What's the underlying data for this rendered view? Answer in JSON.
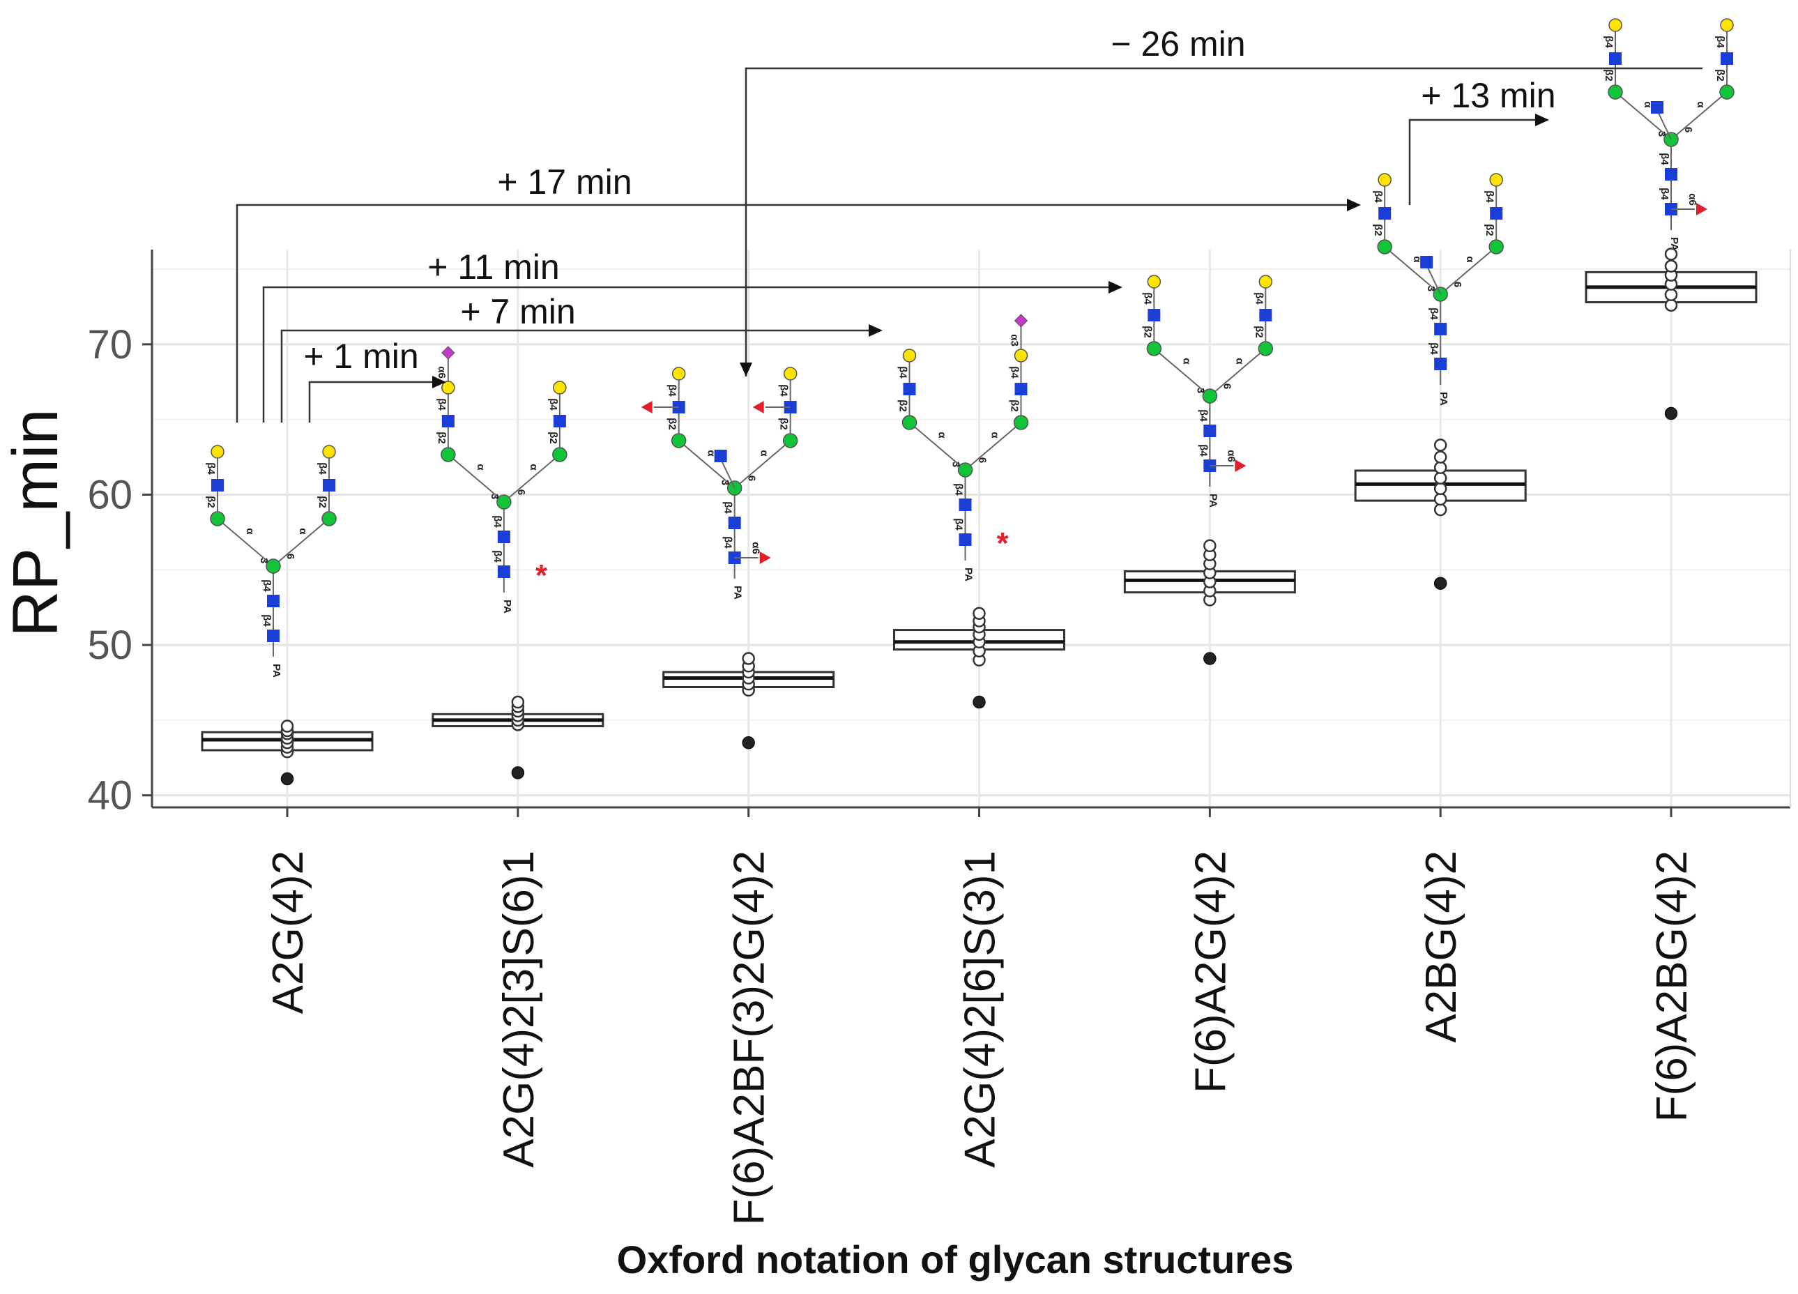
{
  "chart_data": {
    "type": "boxplot",
    "ylabel": "RP_min",
    "xlabel": "Oxford notation of glycan structures",
    "ylim": [
      39.2,
      76.3
    ],
    "yticks": [
      40,
      50,
      60,
      70
    ],
    "grid": true,
    "categories": [
      "A2G(4)2",
      "A2G(4)2[3]S(6)1",
      "F(6)A2BF(3)2G(4)2",
      "A2G(4)2[6]S(3)1",
      "F(6)A2G(4)2",
      "A2BG(4)2",
      "F(6)A2BG(4)2"
    ],
    "boxes": [
      {
        "q1": 43.0,
        "median": 43.7,
        "q3": 44.2,
        "low": 43.0,
        "high": 44.6,
        "points": [
          42.9,
          43.2,
          43.5,
          43.8,
          44.1,
          44.3,
          44.6
        ],
        "filled": [
          41.1
        ]
      },
      {
        "q1": 44.6,
        "median": 45.0,
        "q3": 45.4,
        "low": 44.6,
        "high": 46.2,
        "points": [
          44.7,
          45.0,
          45.3,
          45.6,
          45.9,
          46.2
        ],
        "filled": [
          41.5
        ]
      },
      {
        "q1": 47.2,
        "median": 47.8,
        "q3": 48.2,
        "low": 47.0,
        "high": 49.1,
        "points": [
          47.0,
          47.4,
          47.8,
          48.2,
          48.6,
          49.1
        ],
        "filled": [
          43.5
        ]
      },
      {
        "q1": 49.7,
        "median": 50.2,
        "q3": 51.0,
        "low": 49.0,
        "high": 52.1,
        "points": [
          49.0,
          49.6,
          50.2,
          50.7,
          51.2,
          51.6,
          52.1
        ],
        "filled": [
          46.2
        ]
      },
      {
        "q1": 53.5,
        "median": 54.3,
        "q3": 54.9,
        "low": 53.0,
        "high": 56.6,
        "points": [
          53.0,
          53.6,
          54.2,
          54.8,
          55.4,
          56.0,
          56.6
        ],
        "filled": [
          49.1
        ]
      },
      {
        "q1": 59.6,
        "median": 60.7,
        "q3": 61.6,
        "low": 59.0,
        "high": 63.3,
        "points": [
          59.0,
          59.7,
          60.4,
          61.1,
          61.8,
          62.5,
          63.3
        ],
        "filled": [
          54.1
        ]
      },
      {
        "q1": 72.8,
        "median": 73.8,
        "q3": 74.8,
        "low": 72.6,
        "high": 76.0,
        "points": [
          72.6,
          73.3,
          74.0,
          74.6,
          75.2,
          76.0
        ],
        "filled": [
          65.4
        ]
      }
    ],
    "annotations": [
      {
        "label": "+ 1 min",
        "from": 0,
        "to": 1
      },
      {
        "label": "+ 7 min",
        "from": 0,
        "to": 3
      },
      {
        "label": "+ 11 min",
        "from": 0,
        "to": 4
      },
      {
        "label": "+ 17 min",
        "from": 0,
        "to": 5
      },
      {
        "label": "+ 13 min",
        "from": 5,
        "to": 6
      },
      {
        "label": "− 26 min",
        "from": 6,
        "to": 2
      }
    ],
    "glycan_labels": {
      "linkages": [
        "β4",
        "β2",
        "α",
        "3",
        "6",
        "α"
      ],
      "reducing_end": "PA",
      "sialic_linkages": [
        "α6",
        "α3"
      ],
      "star": "*",
      "starred_categories": [
        1,
        3
      ]
    }
  },
  "colors": {
    "galactose": "#ffe400",
    "glcnac": "#1b3fd6",
    "mannose": "#12c43a",
    "fucose": "#e0202a",
    "sialic": "#c43ac8"
  }
}
